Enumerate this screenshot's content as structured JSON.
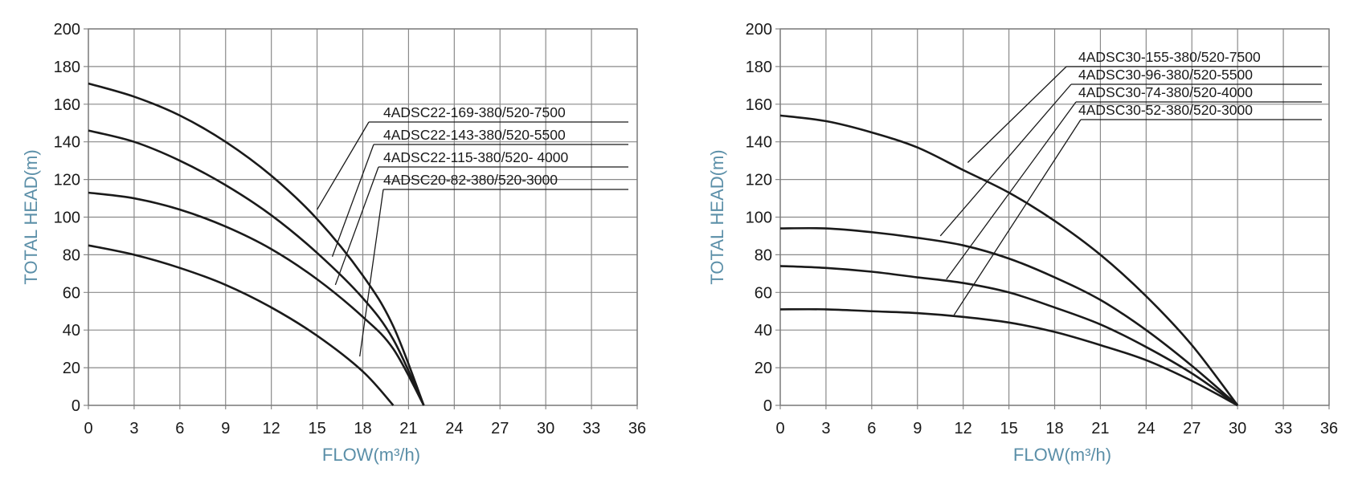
{
  "chart_data": [
    {
      "type": "line",
      "xlabel": "FLOW(m³/h)",
      "ylabel": "TOTAL HEAD(m)",
      "xlim": [
        0,
        36
      ],
      "ylim": [
        0,
        200
      ],
      "x_ticks": [
        "0",
        "3",
        "6",
        "9",
        "12",
        "15",
        "18",
        "21",
        "24",
        "27",
        "30",
        "33",
        "36"
      ],
      "y_ticks": [
        "0",
        "20",
        "40",
        "60",
        "80",
        "100",
        "120",
        "140",
        "160",
        "180",
        "200"
      ],
      "grid": true,
      "series": [
        {
          "name": "4ADSC22-169-380/520-7500",
          "x": [
            0,
            3,
            6,
            9,
            12,
            15,
            18,
            20,
            22
          ],
          "y": [
            171,
            164,
            154,
            140,
            122,
            99,
            69,
            42,
            0
          ]
        },
        {
          "name": "4ADSC22-143-380/520-5500",
          "x": [
            0,
            3,
            6,
            9,
            12,
            15,
            18,
            20,
            22
          ],
          "y": [
            146,
            140,
            130,
            117,
            101,
            81,
            57,
            35,
            0
          ]
        },
        {
          "name": "4ADSC22-115-380/520- 4000",
          "x": [
            0,
            3,
            6,
            9,
            12,
            15,
            18,
            20,
            22
          ],
          "y": [
            113,
            110,
            104,
            95,
            83,
            67,
            47,
            30,
            0
          ]
        },
        {
          "name": "4ADSC20-82-380/520-3000",
          "x": [
            0,
            3,
            6,
            9,
            12,
            15,
            18,
            20
          ],
          "y": [
            85,
            80,
            73,
            64,
            52,
            37,
            18,
            0
          ]
        }
      ]
    },
    {
      "type": "line",
      "xlabel": "FLOW(m³/h)",
      "ylabel": "TOTAL HEAD(m)",
      "xlim": [
        0,
        36
      ],
      "ylim": [
        0,
        200
      ],
      "x_ticks": [
        "0",
        "3",
        "6",
        "9",
        "12",
        "15",
        "18",
        "21",
        "24",
        "27",
        "30",
        "33",
        "36"
      ],
      "y_ticks": [
        "0",
        "20",
        "40",
        "60",
        "80",
        "100",
        "120",
        "140",
        "160",
        "180",
        "200"
      ],
      "grid": true,
      "series": [
        {
          "name": "4ADSC30-155-380/520-7500",
          "x": [
            0,
            3,
            6,
            9,
            12,
            15,
            18,
            21,
            24,
            27,
            30
          ],
          "y": [
            154,
            151,
            145,
            137,
            125,
            113,
            98,
            80,
            58,
            32,
            0
          ]
        },
        {
          "name": "4ADSC30-96-380/520-5500",
          "x": [
            0,
            3,
            6,
            9,
            12,
            15,
            18,
            21,
            24,
            27,
            30
          ],
          "y": [
            94,
            94,
            92,
            89,
            85,
            78,
            68,
            56,
            40,
            21,
            0
          ]
        },
        {
          "name": "4ADSC30-74-380/520-4000",
          "x": [
            0,
            3,
            6,
            9,
            12,
            15,
            18,
            21,
            24,
            27,
            30
          ],
          "y": [
            74,
            73,
            71,
            68,
            65,
            60,
            52,
            43,
            31,
            17,
            0
          ]
        },
        {
          "name": "4ADSC30-52-380/520-3000",
          "x": [
            0,
            3,
            6,
            9,
            12,
            15,
            18,
            21,
            24,
            27,
            30
          ],
          "y": [
            51,
            51,
            50,
            49,
            47,
            44,
            39,
            32,
            24,
            13,
            0
          ]
        }
      ]
    }
  ]
}
